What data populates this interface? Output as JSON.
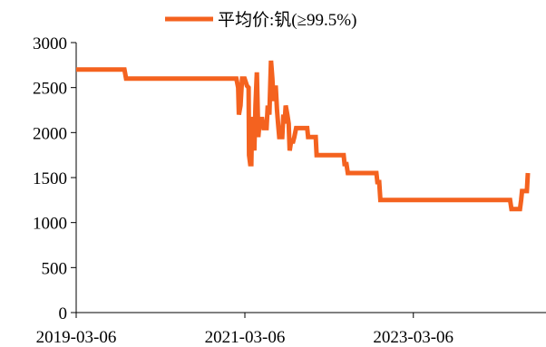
{
  "chart_data": {
    "type": "line",
    "legend": {
      "position": "top",
      "entries": [
        "平均价:钒(≥99.5%)"
      ]
    },
    "series": [
      {
        "name": "平均价:钒(≥99.5%)",
        "color": "#f4621f",
        "points": [
          [
            "2019-03-06",
            2700
          ],
          [
            "2019-10-01",
            2700
          ],
          [
            "2019-10-08",
            2600
          ],
          [
            "2021-01-28",
            2600
          ],
          [
            "2021-02-05",
            2500
          ],
          [
            "2021-02-08",
            2200
          ],
          [
            "2021-02-15",
            2300
          ],
          [
            "2021-02-22",
            2600
          ],
          [
            "2021-03-05",
            2600
          ],
          [
            "2021-03-15",
            2520
          ],
          [
            "2021-03-22",
            2500
          ],
          [
            "2021-03-24",
            1750
          ],
          [
            "2021-03-29",
            1650
          ],
          [
            "2021-04-03",
            1650
          ],
          [
            "2021-04-06",
            2150
          ],
          [
            "2021-04-12",
            2150
          ],
          [
            "2021-04-16",
            1800
          ],
          [
            "2021-04-21",
            2300
          ],
          [
            "2021-04-27",
            2670
          ],
          [
            "2021-05-03",
            1950
          ],
          [
            "2021-05-10",
            2150
          ],
          [
            "2021-05-20",
            2150
          ],
          [
            "2021-05-26",
            2050
          ],
          [
            "2021-06-08",
            2050
          ],
          [
            "2021-06-13",
            2300
          ],
          [
            "2021-06-20",
            2200
          ],
          [
            "2021-06-27",
            2800
          ],
          [
            "2021-07-03",
            2600
          ],
          [
            "2021-07-08",
            2350
          ],
          [
            "2021-07-13",
            2500
          ],
          [
            "2021-07-18",
            2500
          ],
          [
            "2021-07-23",
            2250
          ],
          [
            "2021-07-28",
            2100
          ],
          [
            "2021-08-02",
            1950
          ],
          [
            "2021-08-15",
            1950
          ],
          [
            "2021-08-20",
            2200
          ],
          [
            "2021-08-25",
            2100
          ],
          [
            "2021-08-30",
            2300
          ],
          [
            "2021-09-06",
            2200
          ],
          [
            "2021-09-12",
            2100
          ],
          [
            "2021-09-16",
            1800
          ],
          [
            "2021-09-22",
            1900
          ],
          [
            "2021-10-01",
            1900
          ],
          [
            "2021-10-06",
            1950
          ],
          [
            "2021-10-14",
            2050
          ],
          [
            "2021-12-01",
            2050
          ],
          [
            "2021-12-05",
            1950
          ],
          [
            "2022-01-07",
            1950
          ],
          [
            "2022-01-11",
            1750
          ],
          [
            "2022-05-08",
            1750
          ],
          [
            "2022-05-12",
            1650
          ],
          [
            "2022-05-20",
            1650
          ],
          [
            "2022-05-26",
            1550
          ],
          [
            "2022-09-27",
            1550
          ],
          [
            "2022-10-01",
            1450
          ],
          [
            "2022-10-09",
            1450
          ],
          [
            "2022-10-14",
            1250
          ],
          [
            "2024-04-28",
            1250
          ],
          [
            "2024-05-04",
            1150
          ],
          [
            "2024-06-10",
            1150
          ],
          [
            "2024-06-15",
            1250
          ],
          [
            "2024-06-19",
            1350
          ],
          [
            "2024-07-10",
            1350
          ],
          [
            "2024-07-14",
            1550
          ]
        ]
      }
    ],
    "x_axis": {
      "type": "date",
      "ticks": [
        "2019-03-06",
        "2021-03-06",
        "2023-03-06"
      ],
      "range": [
        "2019-03-06",
        "2024-07-14"
      ]
    },
    "y_axis": {
      "ticks": [
        0,
        500,
        1000,
        1500,
        2000,
        2500,
        3000
      ],
      "ylim": [
        0,
        3000
      ]
    },
    "grid": false
  }
}
